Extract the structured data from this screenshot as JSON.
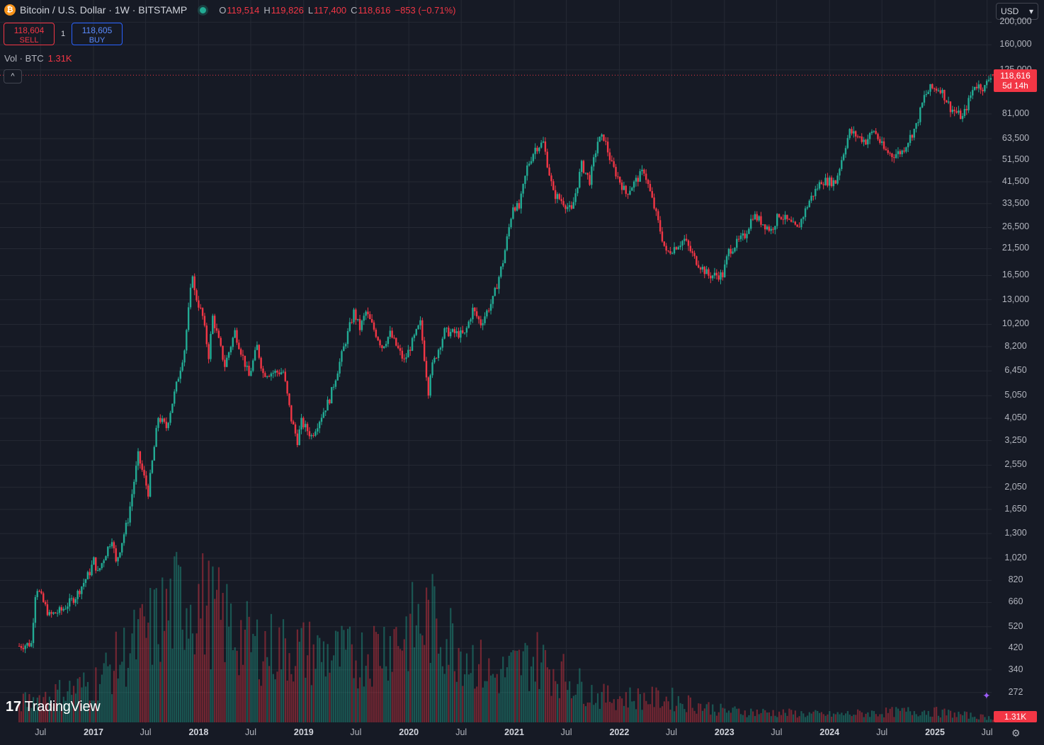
{
  "header": {
    "symbol_title": "Bitcoin / U.S. Dollar · 1W · BITSTAMP",
    "btc_icon_glyph": "₿",
    "ohlc": [
      {
        "key": "O",
        "value": "119,514"
      },
      {
        "key": "H",
        "value": "119,826"
      },
      {
        "key": "L",
        "value": "117,400"
      },
      {
        "key": "C",
        "value": "118,616"
      }
    ],
    "change": "−853 (−0.71%)"
  },
  "trade": {
    "sell_price": "118,604",
    "sell_label": "SELL",
    "buy_price": "118,605",
    "buy_label": "BUY",
    "spread": "1"
  },
  "volume_legend": {
    "label": "Vol · BTC",
    "value": "1.31K"
  },
  "collapse_glyph": "^",
  "currency": {
    "value": "USD",
    "arrow": "▾"
  },
  "price_tag": {
    "price": "118,616",
    "countdown": "5d 14h"
  },
  "volume_tag": "1.31K",
  "branding": {
    "mark": "17",
    "name": "TradingView"
  },
  "colors": {
    "background": "#161a25",
    "up": "#22ab94",
    "down": "#f23645",
    "grid": "#252934"
  },
  "chart_data": {
    "type": "candlestick",
    "scale": "log",
    "interval": "1W",
    "y_ticks": [
      "200,000",
      "160,000",
      "125,000",
      "81,000",
      "63,500",
      "51,500",
      "41,500",
      "33,500",
      "26,500",
      "21,500",
      "16,500",
      "13,000",
      "10,200",
      "8,200",
      "6,450",
      "5,050",
      "4,050",
      "3,250",
      "2,550",
      "2,050",
      "1,650",
      "1,300",
      "1,020",
      "820",
      "660",
      "520",
      "420",
      "340",
      "272"
    ],
    "x_ticks": [
      {
        "label": "Jul",
        "year": false
      },
      {
        "label": "2017",
        "year": true
      },
      {
        "label": "Jul",
        "year": false
      },
      {
        "label": "2018",
        "year": true
      },
      {
        "label": "Jul",
        "year": false
      },
      {
        "label": "2019",
        "year": true
      },
      {
        "label": "Jul",
        "year": false
      },
      {
        "label": "2020",
        "year": true
      },
      {
        "label": "Jul",
        "year": false
      },
      {
        "label": "2021",
        "year": true
      },
      {
        "label": "Jul",
        "year": false
      },
      {
        "label": "2022",
        "year": true
      },
      {
        "label": "Jul",
        "year": false
      },
      {
        "label": "2023",
        "year": true
      },
      {
        "label": "Jul",
        "year": false
      },
      {
        "label": "2024",
        "year": true
      },
      {
        "label": "Jul",
        "year": false
      },
      {
        "label": "2025",
        "year": true
      },
      {
        "label": "Jul",
        "year": false
      }
    ],
    "price_path": [
      [
        "2016-04-18",
        430
      ],
      [
        "2016-05-30",
        440
      ],
      [
        "2016-06-13",
        720
      ],
      [
        "2016-06-20",
        760
      ],
      [
        "2016-07-11",
        660
      ],
      [
        "2016-08-01",
        580
      ],
      [
        "2016-09-12",
        610
      ],
      [
        "2016-10-31",
        700
      ],
      [
        "2016-12-19",
        890
      ],
      [
        "2017-01-02",
        1000
      ],
      [
        "2017-01-16",
        880
      ],
      [
        "2017-03-06",
        1250
      ],
      [
        "2017-03-20",
        970
      ],
      [
        "2017-05-01",
        1500
      ],
      [
        "2017-06-05",
        2800
      ],
      [
        "2017-07-10",
        1950
      ],
      [
        "2017-08-14",
        4100
      ],
      [
        "2017-09-11",
        3700
      ],
      [
        "2017-10-16",
        5600
      ],
      [
        "2017-11-13",
        8000
      ],
      [
        "2017-12-11",
        17000
      ],
      [
        "2017-12-18",
        14000
      ],
      [
        "2018-01-15",
        11000
      ],
      [
        "2018-02-05",
        7500
      ],
      [
        "2018-02-19",
        11000
      ],
      [
        "2018-04-02",
        6800
      ],
      [
        "2018-05-07",
        9500
      ],
      [
        "2018-06-25",
        6100
      ],
      [
        "2018-07-23",
        8200
      ],
      [
        "2018-08-13",
        6300
      ],
      [
        "2018-10-22",
        6400
      ],
      [
        "2018-11-19",
        4000
      ],
      [
        "2018-12-10",
        3250
      ],
      [
        "2018-12-24",
        3900
      ],
      [
        "2019-01-28",
        3400
      ],
      [
        "2019-04-01",
        4900
      ],
      [
        "2019-05-27",
        8700
      ],
      [
        "2019-06-24",
        11500
      ],
      [
        "2019-07-15",
        9800
      ],
      [
        "2019-08-05",
        11500
      ],
      [
        "2019-09-30",
        8200
      ],
      [
        "2019-10-28",
        9300
      ],
      [
        "2019-12-16",
        7100
      ],
      [
        "2020-02-10",
        10300
      ],
      [
        "2020-03-09",
        5300
      ],
      [
        "2020-03-16",
        6400
      ],
      [
        "2020-05-04",
        9500
      ],
      [
        "2020-07-13",
        9200
      ],
      [
        "2020-08-10",
        11800
      ],
      [
        "2020-09-07",
        10300
      ],
      [
        "2020-10-19",
        13000
      ],
      [
        "2020-11-23",
        19000
      ],
      [
        "2020-12-28",
        33000
      ],
      [
        "2021-01-18",
        32000
      ],
      [
        "2021-02-15",
        48000
      ],
      [
        "2021-03-15",
        58000
      ],
      [
        "2021-04-12",
        61000
      ],
      [
        "2021-05-17",
        37000
      ],
      [
        "2021-06-21",
        34000
      ],
      [
        "2021-07-19",
        31000
      ],
      [
        "2021-08-23",
        49000
      ],
      [
        "2021-09-20",
        42000
      ],
      [
        "2021-10-18",
        62000
      ],
      [
        "2021-11-08",
        64500
      ],
      [
        "2021-12-06",
        49000
      ],
      [
        "2022-01-24",
        37000
      ],
      [
        "2022-03-28",
        46500
      ],
      [
        "2022-05-09",
        30000
      ],
      [
        "2022-06-13",
        20500
      ],
      [
        "2022-08-15",
        23500
      ],
      [
        "2022-09-19",
        19500
      ],
      [
        "2022-11-07",
        16500
      ],
      [
        "2022-12-26",
        16600
      ],
      [
        "2023-01-16",
        21000
      ],
      [
        "2023-03-13",
        24500
      ],
      [
        "2023-04-10",
        30000
      ],
      [
        "2023-06-12",
        25800
      ],
      [
        "2023-07-10",
        30200
      ],
      [
        "2023-09-11",
        26000
      ],
      [
        "2023-10-23",
        34500
      ],
      [
        "2023-12-04",
        42000
      ],
      [
        "2024-01-22",
        41500
      ],
      [
        "2024-02-26",
        60000
      ],
      [
        "2024-03-11",
        68000
      ],
      [
        "2024-05-06",
        62000
      ],
      [
        "2024-06-03",
        69000
      ],
      [
        "2024-07-08",
        57000
      ],
      [
        "2024-08-05",
        54000
      ],
      [
        "2024-09-09",
        56000
      ],
      [
        "2024-10-28",
        72000
      ],
      [
        "2024-11-25",
        96000
      ],
      [
        "2024-12-16",
        104000
      ],
      [
        "2025-01-20",
        104000
      ],
      [
        "2025-02-24",
        86000
      ],
      [
        "2025-04-07",
        78000
      ],
      [
        "2025-05-19",
        108000
      ],
      [
        "2025-06-23",
        105000
      ],
      [
        "2025-07-14",
        119500
      ],
      [
        "2025-07-21",
        118616
      ]
    ],
    "volume_relative": {
      "peak_2018": 1.0,
      "peak_2019": 0.8,
      "peak_2020": 0.85,
      "peak_2021": 0.6,
      "peak_2022": 0.25,
      "late_2024": 0.15,
      "current": "1.31K"
    }
  }
}
